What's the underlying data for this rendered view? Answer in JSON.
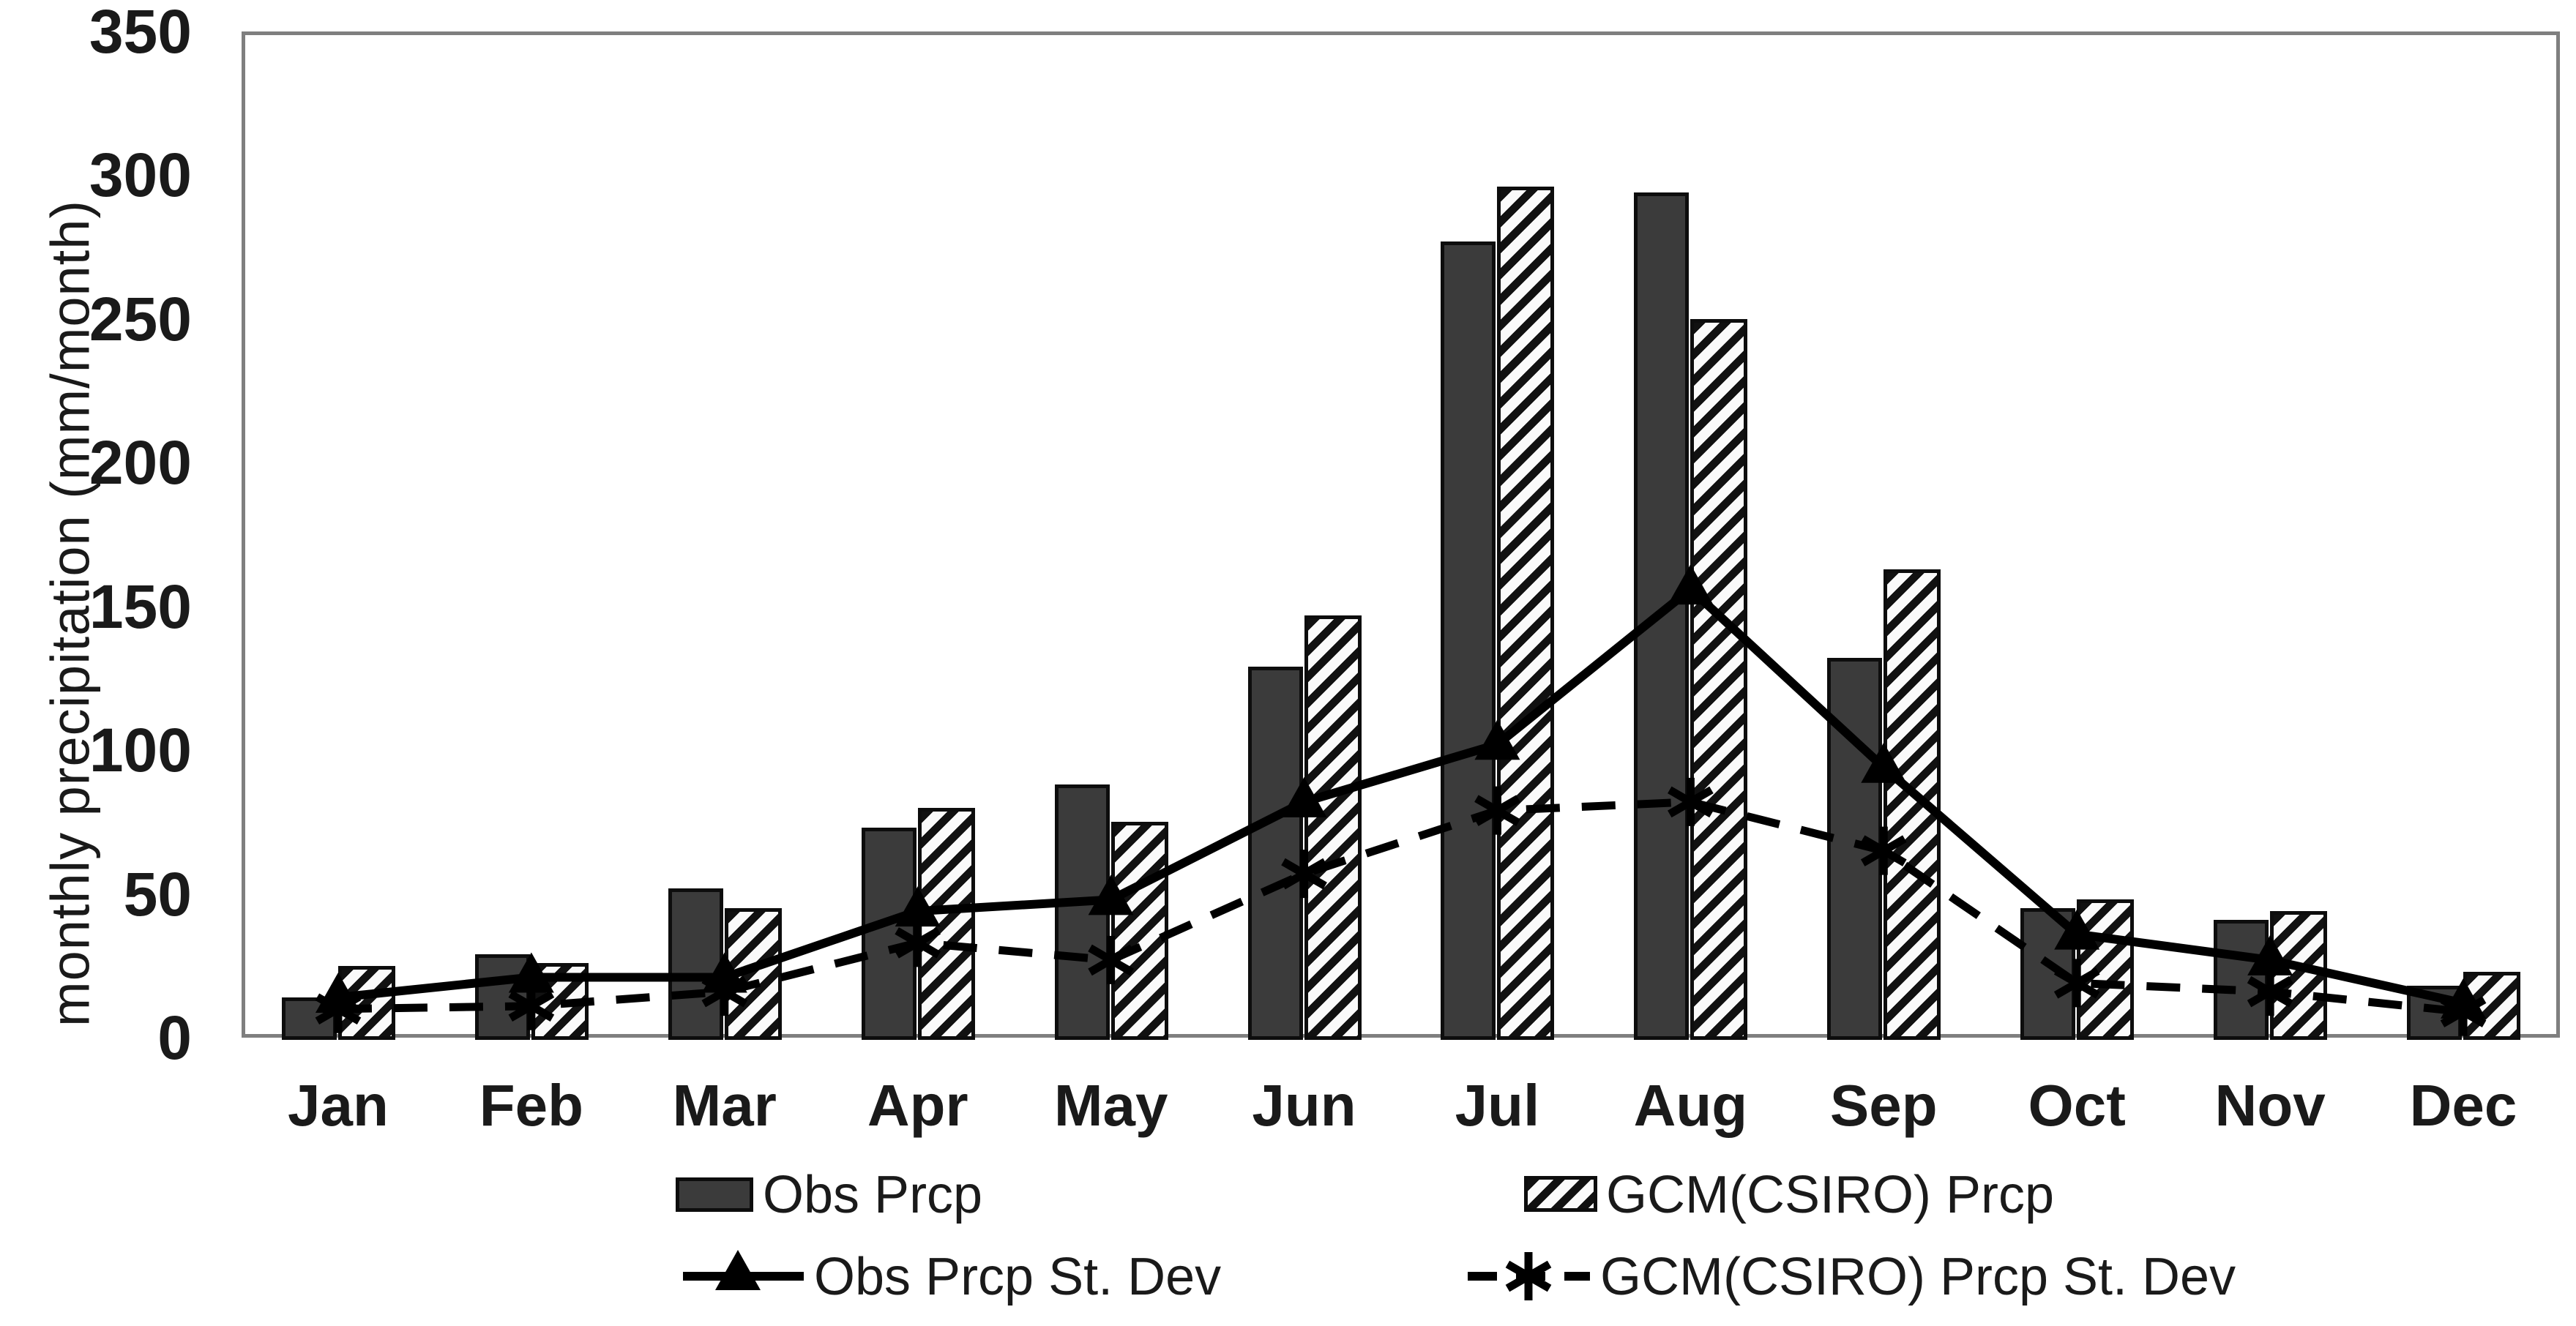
{
  "chart_data": {
    "type": "bar",
    "title": "",
    "categories": [
      "Jan",
      "Feb",
      "Mar",
      "Apr",
      "May",
      "Jun",
      "Jul",
      "Aug",
      "Sep",
      "Oct",
      "Nov",
      "Dec"
    ],
    "series": [
      {
        "name": "Obs Prcp",
        "type": "bar",
        "style": "solid-dark-fill",
        "values": [
          14,
          29,
          52,
          73,
          88,
          129,
          277,
          294,
          132,
          45,
          41,
          18
        ]
      },
      {
        "name": "GCM(CSIRO) Prcp",
        "type": "bar",
        "style": "diagonal-hatch-fill",
        "values": [
          25,
          26,
          45,
          80,
          75,
          147,
          296,
          250,
          163,
          48,
          44,
          23
        ]
      },
      {
        "name": "Obs Prcp St. Dev",
        "type": "line",
        "style": "solid-line-filled-triangle-markers",
        "values": [
          14,
          21,
          21,
          44,
          48,
          82,
          102,
          156,
          94,
          36,
          27,
          12
        ]
      },
      {
        "name": "GCM(CSIRO) Prcp St. Dev",
        "type": "line",
        "style": "dashed-line-asterisk-markers",
        "values": [
          10,
          11,
          16,
          33,
          27,
          57,
          79,
          82,
          65,
          19,
          16,
          9
        ]
      }
    ],
    "xlabel": "",
    "ylabel": "monthly precipitation (mm/month)",
    "ylim": [
      0,
      350
    ],
    "yticks": [
      0,
      50,
      100,
      150,
      200,
      250,
      300,
      350
    ],
    "grid": false,
    "legend_position": "bottom-two-rows"
  },
  "colors": {
    "background": "#ffffff",
    "bar_dark_fill": "#3b3b3b",
    "bar_outline": "#0d0d0d",
    "hatch_dark": "#111111",
    "hatch_light": "#fafafa",
    "plot_frame_gray": "#7f7f7f",
    "line_black": "#000000",
    "text": "#1a1a1a"
  }
}
